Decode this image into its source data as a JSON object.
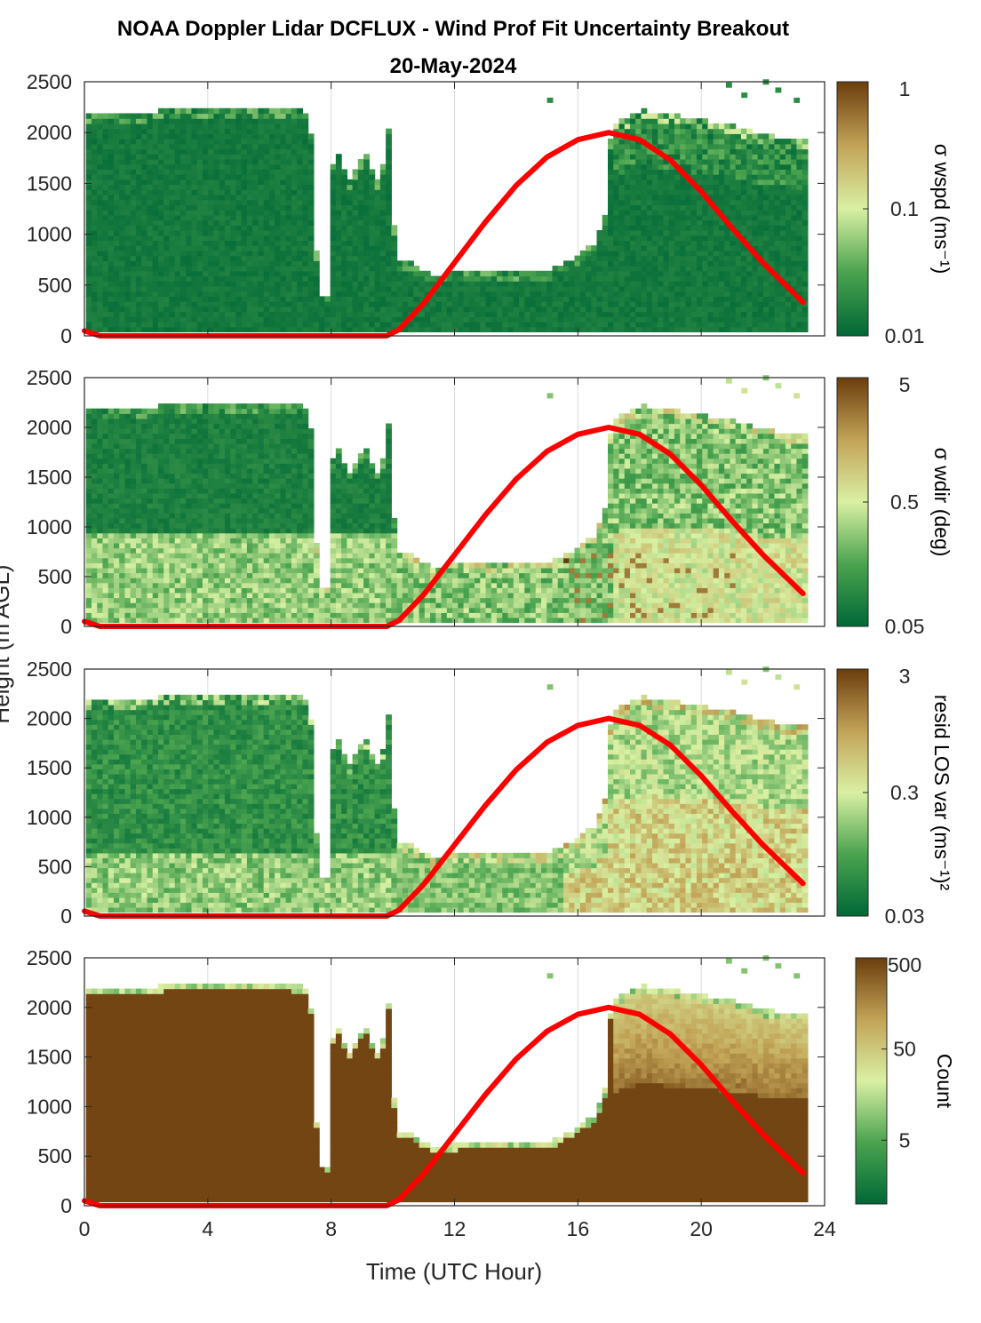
{
  "figure": {
    "title": "NOAA Doppler Lidar DCFLUX - Wind Prof Fit Uncertainty Breakout",
    "subtitle": "20-May-2024",
    "xlabel": "Time (UTC Hour)",
    "ylabel": "Height (m AGL)"
  },
  "colors": {
    "low": "#006837",
    "mid": "#d9f0a3",
    "tan": "#c2a356",
    "high": "#6b3d0d",
    "sun_curve": "#ff0000",
    "grid": "#dcdcdc",
    "axis": "#262626"
  },
  "chart_data": [
    {
      "type": "heatmap",
      "quantity": "sigma wspd",
      "colorbar_label": "σ wspd (ms⁻¹)",
      "colorbar_ticks": [
        "0.01",
        "0.1",
        "1"
      ],
      "clim": [
        0.01,
        1
      ],
      "log_color": true,
      "xlim": [
        0,
        24
      ],
      "ylim": [
        0,
        2500
      ],
      "xticks": [
        0,
        4,
        8,
        12,
        16,
        20,
        24
      ],
      "yticks": [
        0,
        500,
        1000,
        1500,
        2000,
        2500
      ]
    },
    {
      "type": "heatmap",
      "quantity": "sigma wdir",
      "colorbar_label": "σ wdir (deg)",
      "colorbar_ticks": [
        "0.05",
        "0.5",
        "5"
      ],
      "clim": [
        0.05,
        5
      ],
      "log_color": true,
      "xlim": [
        0,
        24
      ],
      "ylim": [
        0,
        2500
      ],
      "xticks": [
        0,
        4,
        8,
        12,
        16,
        20,
        24
      ],
      "yticks": [
        0,
        500,
        1000,
        1500,
        2000,
        2500
      ]
    },
    {
      "type": "heatmap",
      "quantity": "resid LOS var",
      "colorbar_label": "resid LOS var (ms⁻¹)²",
      "colorbar_ticks": [
        "0.03",
        "0.3",
        "3"
      ],
      "clim": [
        0.03,
        3
      ],
      "log_color": true,
      "xlim": [
        0,
        24
      ],
      "ylim": [
        0,
        2500
      ],
      "xticks": [
        0,
        4,
        8,
        12,
        16,
        20,
        24
      ],
      "yticks": [
        0,
        500,
        1000,
        1500,
        2000,
        2500
      ]
    },
    {
      "type": "heatmap",
      "quantity": "Count",
      "colorbar_label": "Count",
      "colorbar_ticks": [
        "5",
        "50",
        "500"
      ],
      "clim": [
        1,
        500
      ],
      "log_color": true,
      "xlim": [
        0,
        24
      ],
      "ylim": [
        0,
        2500
      ],
      "xticks": [
        0,
        4,
        8,
        12,
        16,
        20,
        24
      ],
      "yticks": [
        0,
        500,
        1000,
        1500,
        2000,
        2500
      ]
    }
  ],
  "data_top_profile": {
    "description_units": "hour, height m",
    "points": [
      [
        0.1,
        2160
      ],
      [
        1.0,
        2150
      ],
      [
        2.0,
        2180
      ],
      [
        3.0,
        2220
      ],
      [
        4.0,
        2230
      ],
      [
        5.0,
        2220
      ],
      [
        6.0,
        2220
      ],
      [
        7.2,
        2180
      ],
      [
        7.35,
        1600
      ],
      [
        7.45,
        600
      ],
      [
        7.8,
        350
      ],
      [
        8.0,
        1900
      ],
      [
        8.5,
        1500
      ],
      [
        9.0,
        1800
      ],
      [
        9.5,
        1450
      ],
      [
        9.8,
        2100
      ],
      [
        10.0,
        700
      ],
      [
        10.5,
        700
      ],
      [
        11.2,
        570
      ],
      [
        12.0,
        600
      ],
      [
        13.0,
        600
      ],
      [
        14.0,
        600
      ],
      [
        15.0,
        620
      ],
      [
        15.8,
        750
      ],
      [
        16.5,
        900
      ],
      [
        16.8,
        1150
      ],
      [
        17.0,
        2050
      ],
      [
        18.0,
        2200
      ],
      [
        19.0,
        2150
      ],
      [
        20.0,
        2100
      ],
      [
        21.0,
        2050
      ],
      [
        22.0,
        1950
      ],
      [
        23.3,
        1900
      ]
    ]
  },
  "sun_curve": {
    "description_units": "hour, height m",
    "points": [
      [
        0.0,
        50
      ],
      [
        0.5,
        0
      ],
      [
        9.8,
        0
      ],
      [
        10.2,
        60
      ],
      [
        11.0,
        320
      ],
      [
        12.0,
        720
      ],
      [
        13.0,
        1120
      ],
      [
        14.0,
        1480
      ],
      [
        15.0,
        1760
      ],
      [
        16.0,
        1930
      ],
      [
        17.0,
        2000
      ],
      [
        18.0,
        1930
      ],
      [
        19.0,
        1730
      ],
      [
        20.0,
        1420
      ],
      [
        21.0,
        1060
      ],
      [
        22.0,
        720
      ],
      [
        23.3,
        330
      ]
    ]
  }
}
